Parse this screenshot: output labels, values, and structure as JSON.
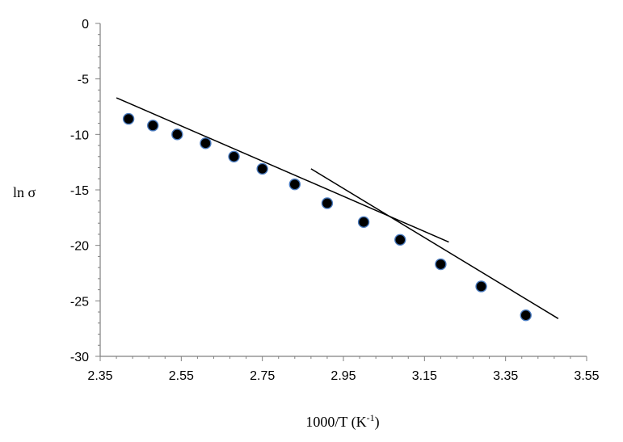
{
  "chart_data": {
    "type": "scatter",
    "title": "",
    "xlabel": {
      "main": "1000/T (K",
      "sup": "-1",
      "close": ")"
    },
    "ylabel": "ln σ",
    "xlim": [
      2.35,
      3.55
    ],
    "ylim": [
      -30,
      0
    ],
    "x_ticks": [
      "2.35",
      "2.55",
      "2.75",
      "2.95",
      "3.15",
      "3.35",
      "3.55"
    ],
    "y_ticks": [
      "0",
      "-5",
      "-10",
      "-15",
      "-20",
      "-25",
      "-30"
    ],
    "grid": false,
    "legend": "none",
    "series": [
      {
        "values": [
          {
            "x": 2.42,
            "y": -8.6
          },
          {
            "x": 2.48,
            "y": -9.2
          },
          {
            "x": 2.54,
            "y": -10.0
          },
          {
            "x": 2.61,
            "y": -10.8
          },
          {
            "x": 2.68,
            "y": -12.0
          },
          {
            "x": 2.75,
            "y": -13.1
          },
          {
            "x": 2.83,
            "y": -14.5
          },
          {
            "x": 2.91,
            "y": -16.2
          },
          {
            "x": 3.0,
            "y": -17.9
          },
          {
            "x": 3.09,
            "y": -19.5
          },
          {
            "x": 3.19,
            "y": -21.7
          },
          {
            "x": 3.29,
            "y": -23.7
          },
          {
            "x": 3.4,
            "y": -26.3
          }
        ]
      }
    ],
    "fit_lines": [
      {
        "from": {
          "x": 2.39,
          "y": -6.7
        },
        "to": {
          "x": 3.21,
          "y": -19.7
        }
      },
      {
        "from": {
          "x": 2.87,
          "y": -13.1
        },
        "to": {
          "x": 3.48,
          "y": -26.6
        }
      }
    ],
    "colors": {
      "marker_fill": "#000000",
      "marker_edge": "#4a7bbf",
      "line": "#000000",
      "axis": "#808080"
    }
  }
}
